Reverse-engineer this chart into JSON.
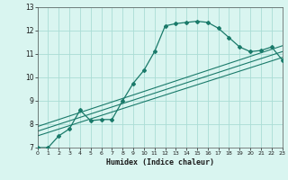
{
  "xlabel": "Humidex (Indice chaleur)",
  "bg_color": "#d9f5f0",
  "line_color": "#1a7a6a",
  "grid_color": "#aaddd5",
  "xlim": [
    0,
    23
  ],
  "ylim": [
    7,
    13
  ],
  "yticks": [
    7,
    8,
    9,
    10,
    11,
    12,
    13
  ],
  "xticks": [
    0,
    1,
    2,
    3,
    4,
    5,
    6,
    7,
    8,
    9,
    10,
    11,
    12,
    13,
    14,
    15,
    16,
    17,
    18,
    19,
    20,
    21,
    22,
    23
  ],
  "series1_x": [
    0,
    1,
    2,
    3,
    4,
    5,
    6,
    7,
    8,
    9,
    10,
    11,
    12,
    13,
    14,
    15,
    16,
    17,
    18,
    19,
    20,
    21,
    22,
    23
  ],
  "series1_y": [
    7.0,
    7.0,
    7.5,
    7.8,
    8.6,
    8.15,
    8.2,
    8.2,
    9.0,
    9.75,
    10.3,
    11.1,
    12.2,
    12.3,
    12.35,
    12.4,
    12.35,
    12.1,
    11.7,
    11.3,
    11.1,
    11.15,
    11.3,
    10.75
  ],
  "series2_x": [
    0,
    23
  ],
  "series2_y": [
    7.5,
    10.85
  ],
  "series3_x": [
    0,
    23
  ],
  "series3_y": [
    7.7,
    11.1
  ],
  "series4_x": [
    0,
    23
  ],
  "series4_y": [
    7.9,
    11.35
  ]
}
